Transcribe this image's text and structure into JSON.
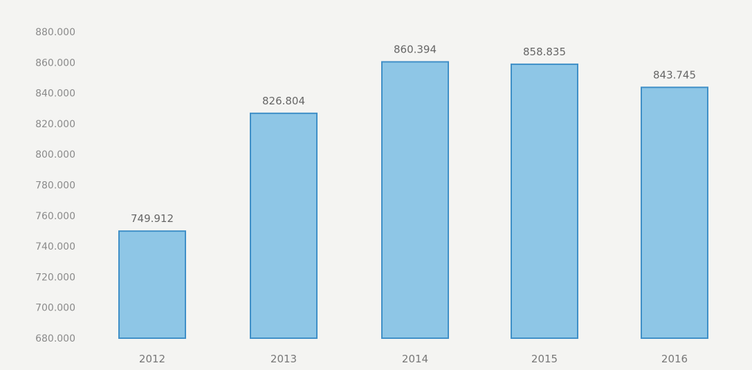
{
  "chart_data": {
    "type": "bar",
    "categories": [
      "2012",
      "2013",
      "2014",
      "2015",
      "2016"
    ],
    "values": [
      749912,
      826804,
      860394,
      858835,
      843745
    ],
    "value_labels": [
      "749.912",
      "826.804",
      "860.394",
      "858.835",
      "843.745"
    ],
    "ylim": [
      680000,
      880000
    ],
    "yticks": [
      680000,
      700000,
      720000,
      740000,
      760000,
      780000,
      800000,
      820000,
      840000,
      860000,
      880000
    ],
    "ytick_labels": [
      "680.000",
      "700.000",
      "720.000",
      "740.000",
      "760.000",
      "780.000",
      "800.000",
      "820.000",
      "840.000",
      "860.000",
      "880.000"
    ],
    "grid": false,
    "colors": {
      "bar_fill": "#8ec6e6",
      "bar_stroke": "#3f8fc7"
    }
  }
}
